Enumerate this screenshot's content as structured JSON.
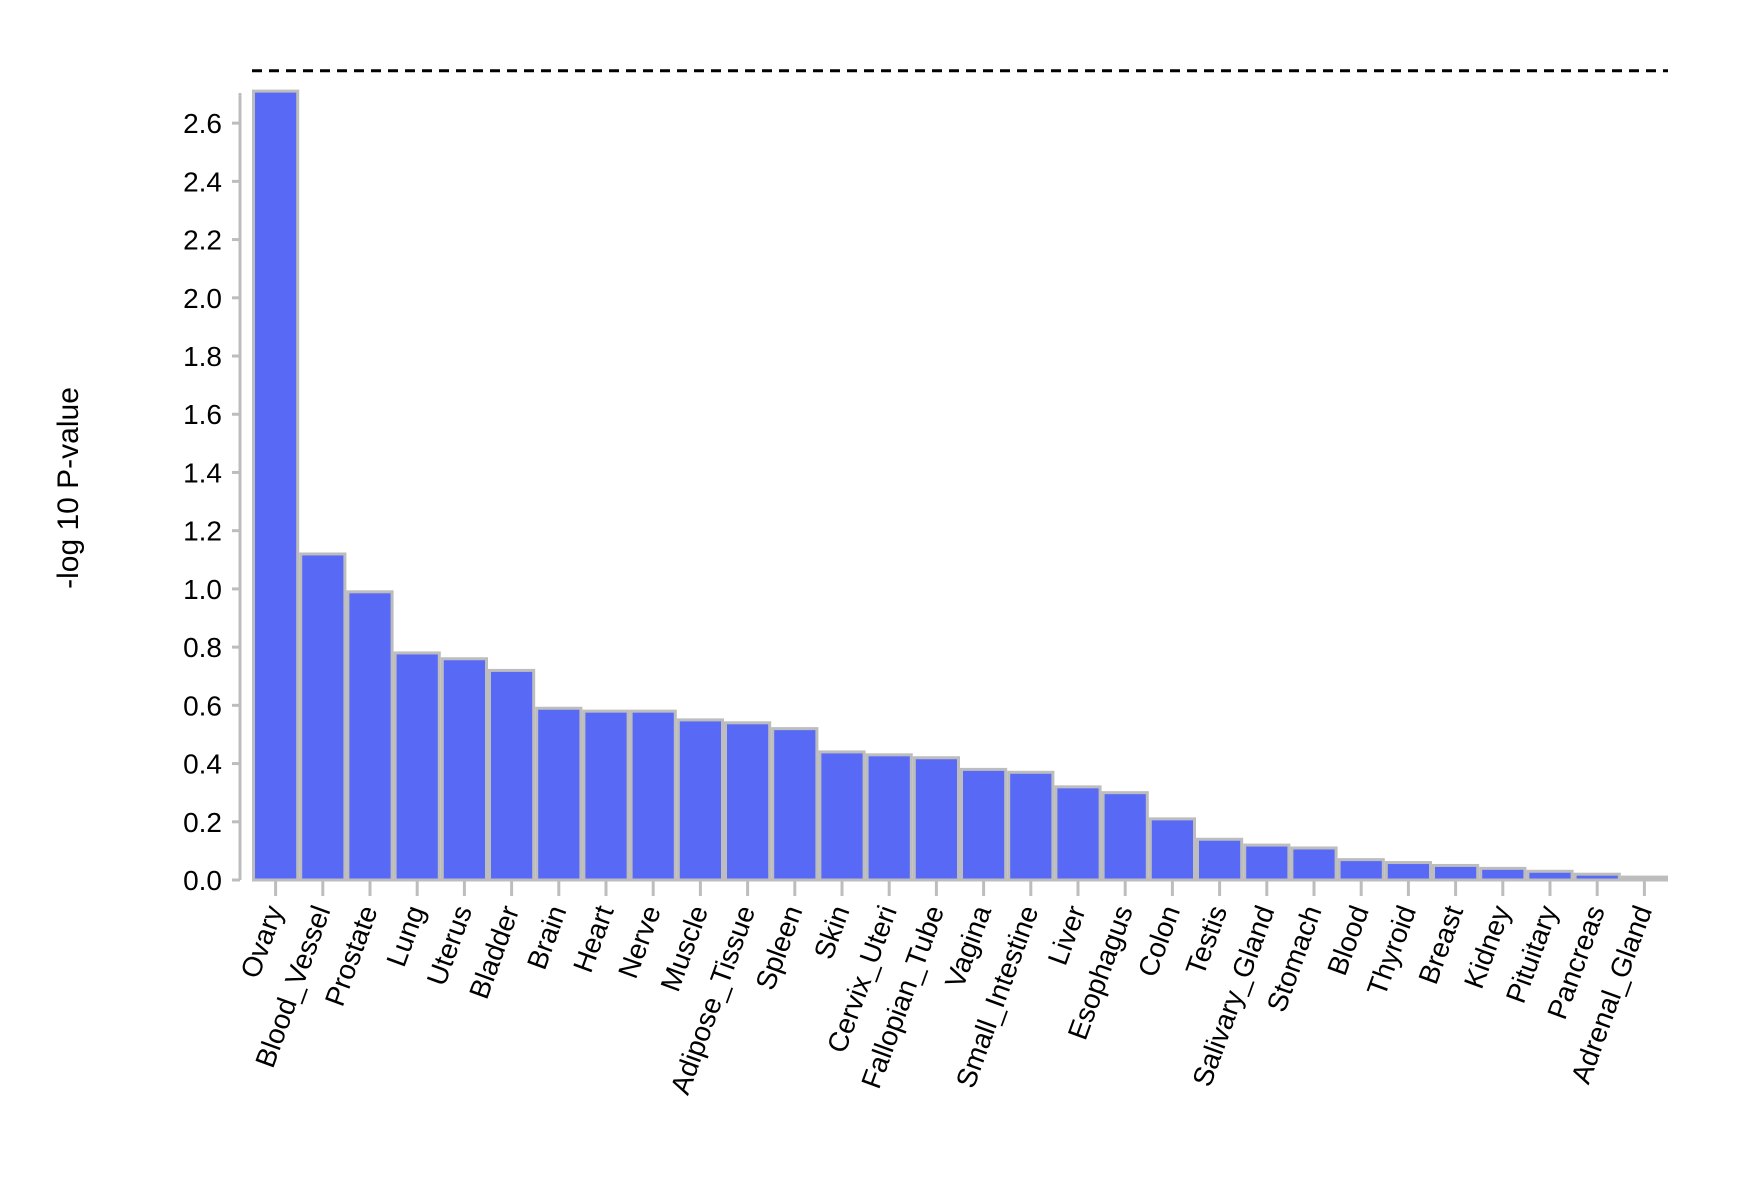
{
  "chart_data": {
    "type": "bar",
    "title": "",
    "xlabel": "",
    "ylabel": "-log 10 P-value",
    "ylim": [
      0,
      2.7
    ],
    "yticks": [
      0.0,
      0.2,
      0.4,
      0.6,
      0.8,
      1.0,
      1.2,
      1.4,
      1.6,
      1.8,
      2.0,
      2.2,
      2.4,
      2.6
    ],
    "ytick_labels": [
      "0.0",
      "0.2",
      "0.4",
      "0.6",
      "0.8",
      "1.0",
      "1.2",
      "1.4",
      "1.6",
      "1.8",
      "2.0",
      "2.2",
      "2.4",
      "2.6"
    ],
    "threshold": 2.78,
    "grid": false,
    "bar_color": "#5869F5",
    "bar_edge_color": "#BDBDBD",
    "axis_color": "#BDBDBD",
    "categories": [
      "Ovary",
      "Blood_Vessel",
      "Prostate",
      "Lung",
      "Uterus",
      "Bladder",
      "Brain",
      "Heart",
      "Nerve",
      "Muscle",
      "Adipose_Tissue",
      "Spleen",
      "Skin",
      "Cervix_Uteri",
      "Fallopian_Tube",
      "Vagina",
      "Small_Intestine",
      "Liver",
      "Esophagus",
      "Colon",
      "Testis",
      "Salivary_Gland",
      "Stomach",
      "Blood",
      "Thyroid",
      "Breast",
      "Kidney",
      "Pituitary",
      "Pancreas",
      "Adrenal_Gland"
    ],
    "values": [
      2.71,
      1.12,
      0.99,
      0.78,
      0.76,
      0.72,
      0.59,
      0.58,
      0.58,
      0.55,
      0.54,
      0.52,
      0.44,
      0.43,
      0.42,
      0.38,
      0.37,
      0.32,
      0.3,
      0.21,
      0.14,
      0.12,
      0.11,
      0.07,
      0.06,
      0.05,
      0.04,
      0.03,
      0.02,
      0.01
    ]
  }
}
